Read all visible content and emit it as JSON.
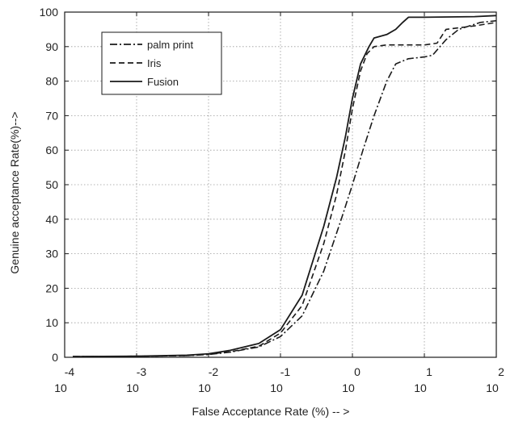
{
  "chart_data": {
    "type": "line",
    "title": "",
    "xlabel": "False Acceptance Rate (%) -- >",
    "ylabel": "Genuine acceptance Rate(%)-->",
    "x_scale": "log",
    "xlim": [
      0.0001,
      100
    ],
    "ylim": [
      0,
      100
    ],
    "grid": true,
    "grid_style": "dotted",
    "legend_position": "top-left",
    "x_ticks": [
      {
        "base": "10",
        "exp": "-4",
        "value": 0.0001
      },
      {
        "base": "10",
        "exp": "-3",
        "value": 0.001
      },
      {
        "base": "10",
        "exp": "-2",
        "value": 0.01
      },
      {
        "base": "10",
        "exp": "-1",
        "value": 0.1
      },
      {
        "base": "10",
        "exp": "0",
        "value": 1
      },
      {
        "base": "10",
        "exp": "1",
        "value": 10
      },
      {
        "base": "10",
        "exp": "2",
        "value": 100
      }
    ],
    "y_ticks": [
      "0",
      "10",
      "20",
      "30",
      "40",
      "50",
      "60",
      "70",
      "80",
      "90",
      "100"
    ],
    "series": [
      {
        "name": "palm print",
        "style": "dash-dot",
        "color": "#1a1a1a",
        "points": [
          [
            0.00013,
            0.2
          ],
          [
            0.001,
            0.3
          ],
          [
            0.005,
            0.5
          ],
          [
            0.01,
            0.8
          ],
          [
            0.02,
            1.5
          ],
          [
            0.05,
            3
          ],
          [
            0.1,
            6
          ],
          [
            0.2,
            12
          ],
          [
            0.4,
            25
          ],
          [
            0.7,
            40
          ],
          [
            1.0,
            50
          ],
          [
            1.4,
            60
          ],
          [
            2.0,
            70
          ],
          [
            3.0,
            80
          ],
          [
            4.0,
            85
          ],
          [
            6.0,
            86.5
          ],
          [
            10,
            87
          ],
          [
            13,
            87.5
          ],
          [
            20,
            92
          ],
          [
            30,
            95
          ],
          [
            60,
            97
          ],
          [
            100,
            97.5
          ]
        ]
      },
      {
        "name": "Iris",
        "style": "dashed",
        "color": "#1a1a1a",
        "points": [
          [
            0.00013,
            0.2
          ],
          [
            0.001,
            0.3
          ],
          [
            0.005,
            0.5
          ],
          [
            0.01,
            0.9
          ],
          [
            0.02,
            1.6
          ],
          [
            0.05,
            3.2
          ],
          [
            0.1,
            7
          ],
          [
            0.2,
            15
          ],
          [
            0.4,
            33
          ],
          [
            0.6,
            47
          ],
          [
            0.8,
            60
          ],
          [
            1.0,
            72
          ],
          [
            1.3,
            83
          ],
          [
            1.6,
            88
          ],
          [
            2.0,
            90
          ],
          [
            3.0,
            90.5
          ],
          [
            10,
            90.5
          ],
          [
            15,
            91
          ],
          [
            20,
            95
          ],
          [
            50,
            96
          ],
          [
            100,
            97
          ]
        ]
      },
      {
        "name": "Fusion",
        "style": "solid",
        "color": "#1a1a1a",
        "points": [
          [
            0.00013,
            0.2
          ],
          [
            0.001,
            0.3
          ],
          [
            0.005,
            0.6
          ],
          [
            0.01,
            1
          ],
          [
            0.02,
            2
          ],
          [
            0.05,
            4
          ],
          [
            0.1,
            8
          ],
          [
            0.2,
            18
          ],
          [
            0.4,
            38
          ],
          [
            0.6,
            52
          ],
          [
            0.8,
            64
          ],
          [
            1.0,
            75
          ],
          [
            1.3,
            85
          ],
          [
            1.7,
            90
          ],
          [
            2.0,
            92.5
          ],
          [
            3.0,
            93.5
          ],
          [
            4.0,
            95
          ],
          [
            5.0,
            97
          ],
          [
            6.0,
            98.5
          ],
          [
            10,
            98.5
          ],
          [
            50,
            98.7
          ],
          [
            100,
            99
          ]
        ]
      }
    ]
  }
}
